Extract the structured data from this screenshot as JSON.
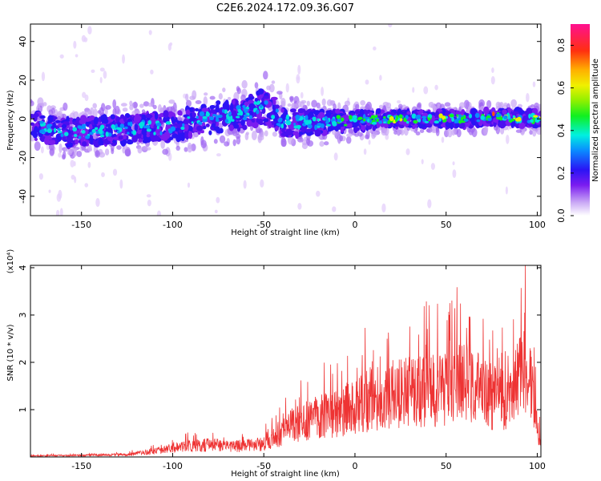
{
  "title": "C2E6.2024.172.09.36.G07",
  "chart_data": [
    {
      "type": "heatmap",
      "xlabel": "Height of straight line (km)",
      "ylabel": "Frequency (Hz)",
      "xlim": [
        -178,
        102
      ],
      "ylim": [
        -50,
        49
      ],
      "xticks": [
        -150,
        -100,
        -50,
        0,
        50,
        100
      ],
      "xtick_labels": [
        "-150",
        "-100",
        "-50",
        "0",
        "50",
        "100"
      ],
      "yticks": [
        -40,
        -20,
        0,
        20,
        40
      ],
      "ytick_labels": [
        "-40",
        "-20",
        "0",
        "20",
        "40"
      ],
      "colorbar": {
        "label": "Normalized spectral amplitude",
        "range": [
          0,
          0.9
        ],
        "ticks": [
          0.0,
          0.2,
          0.4,
          0.6,
          0.8
        ],
        "tick_labels": [
          "0.0",
          "0.2",
          "0.4",
          "0.6",
          "0.8"
        ]
      },
      "ridge": {
        "x": [
          -178,
          -160,
          -140,
          -120,
          -100,
          -80,
          -60,
          -50,
          -45,
          -40,
          -20,
          0,
          20,
          40,
          60,
          80,
          100
        ],
        "frequency": [
          -3,
          -7,
          -6,
          -5,
          -4,
          0,
          3,
          7,
          4,
          -2,
          -2,
          -1,
          0,
          0,
          0,
          1,
          0
        ],
        "half_width": [
          7,
          7,
          7,
          7,
          7,
          8,
          8,
          9,
          9,
          7,
          6,
          5,
          4,
          4,
          4,
          4,
          4
        ]
      }
    },
    {
      "type": "line",
      "xlabel": "Height of straight line (km)",
      "ylabel": "SNR (10 * v/v)",
      "y_multiplier": "(x10⁴)",
      "xlim": [
        -178,
        102
      ],
      "ylim": [
        0,
        4.05
      ],
      "xticks": [
        -150,
        -100,
        -50,
        0,
        50,
        100
      ],
      "xtick_labels": [
        "-150",
        "-100",
        "-50",
        "0",
        "50",
        "100"
      ],
      "yticks": [
        1,
        2,
        3,
        4
      ],
      "ytick_labels": [
        "1",
        "2",
        "3",
        "4"
      ],
      "color": "#ee3333",
      "envelope": {
        "x": [
          -178,
          -150,
          -125,
          -110,
          -100,
          -80,
          -70,
          -60,
          -50,
          -40,
          -35,
          -30,
          -20,
          -10,
          0,
          10,
          20,
          30,
          40,
          50,
          60,
          70,
          80,
          85,
          90,
          93,
          97,
          100,
          102
        ],
        "y": [
          0.03,
          0.04,
          0.06,
          0.15,
          0.25,
          0.32,
          0.28,
          0.3,
          0.35,
          0.6,
          0.85,
          0.9,
          1.05,
          1.15,
          1.35,
          1.55,
          1.65,
          1.75,
          1.78,
          1.8,
          1.95,
          1.75,
          1.5,
          1.4,
          2.2,
          2.5,
          1.7,
          0.7,
          0.35
        ]
      }
    }
  ]
}
